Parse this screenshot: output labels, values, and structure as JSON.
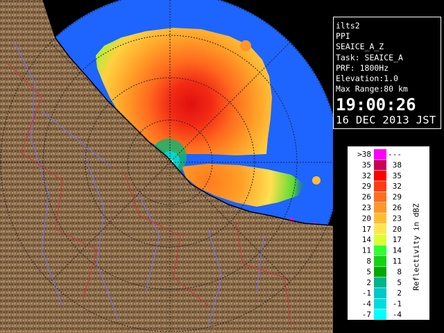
{
  "info": {
    "lines": [
      "ilts2",
      "PPI",
      "SEAICE_A_Z",
      "Task: SEAICE_A",
      "PRF: 1800Hz",
      "Elevation:1.0",
      "Max Range:80 km"
    ],
    "time": "19:00:26",
    "date": "16 DEC 2013 JST"
  },
  "legend": {
    "unit_label": "Reflectivity in dBZ",
    "rows": [
      {
        "low": ">38",
        "high": "---",
        "color": "#ff00ff"
      },
      {
        "low": "35",
        "high": "38",
        "color": "#c8005a"
      },
      {
        "low": "32",
        "high": "35",
        "color": "#ff0000"
      },
      {
        "low": "29",
        "high": "32",
        "color": "#ff3c14"
      },
      {
        "low": "26",
        "high": "29",
        "color": "#ff6e1e"
      },
      {
        "low": "23",
        "high": "26",
        "color": "#ff9628"
      },
      {
        "low": "20",
        "high": "23",
        "color": "#ffbe32"
      },
      {
        "low": "17",
        "high": "20",
        "color": "#ffe650"
      },
      {
        "low": "14",
        "high": "17",
        "color": "#dcff32"
      },
      {
        "low": "11",
        "high": "14",
        "color": "#32ff32"
      },
      {
        "low": "8",
        "high": "11",
        "color": "#14d214"
      },
      {
        "low": "5",
        "high": "8",
        "color": "#00aa00"
      },
      {
        "low": "2",
        "high": "5",
        "color": "#00b48c"
      },
      {
        "low": "-1",
        "high": "2",
        "color": "#00c8c8"
      },
      {
        "low": "-4",
        "high": "-1",
        "color": "#00dcdc"
      },
      {
        "low": "-7",
        "high": "-4",
        "color": "#00ffff"
      }
    ]
  },
  "map": {
    "ocean_color": "#1e64ff",
    "land_color": "#8a6a48",
    "background_color": "#000000",
    "river_color": "#7070ff",
    "boundary_color": "#d03040",
    "range_ring_color": "#222222"
  }
}
